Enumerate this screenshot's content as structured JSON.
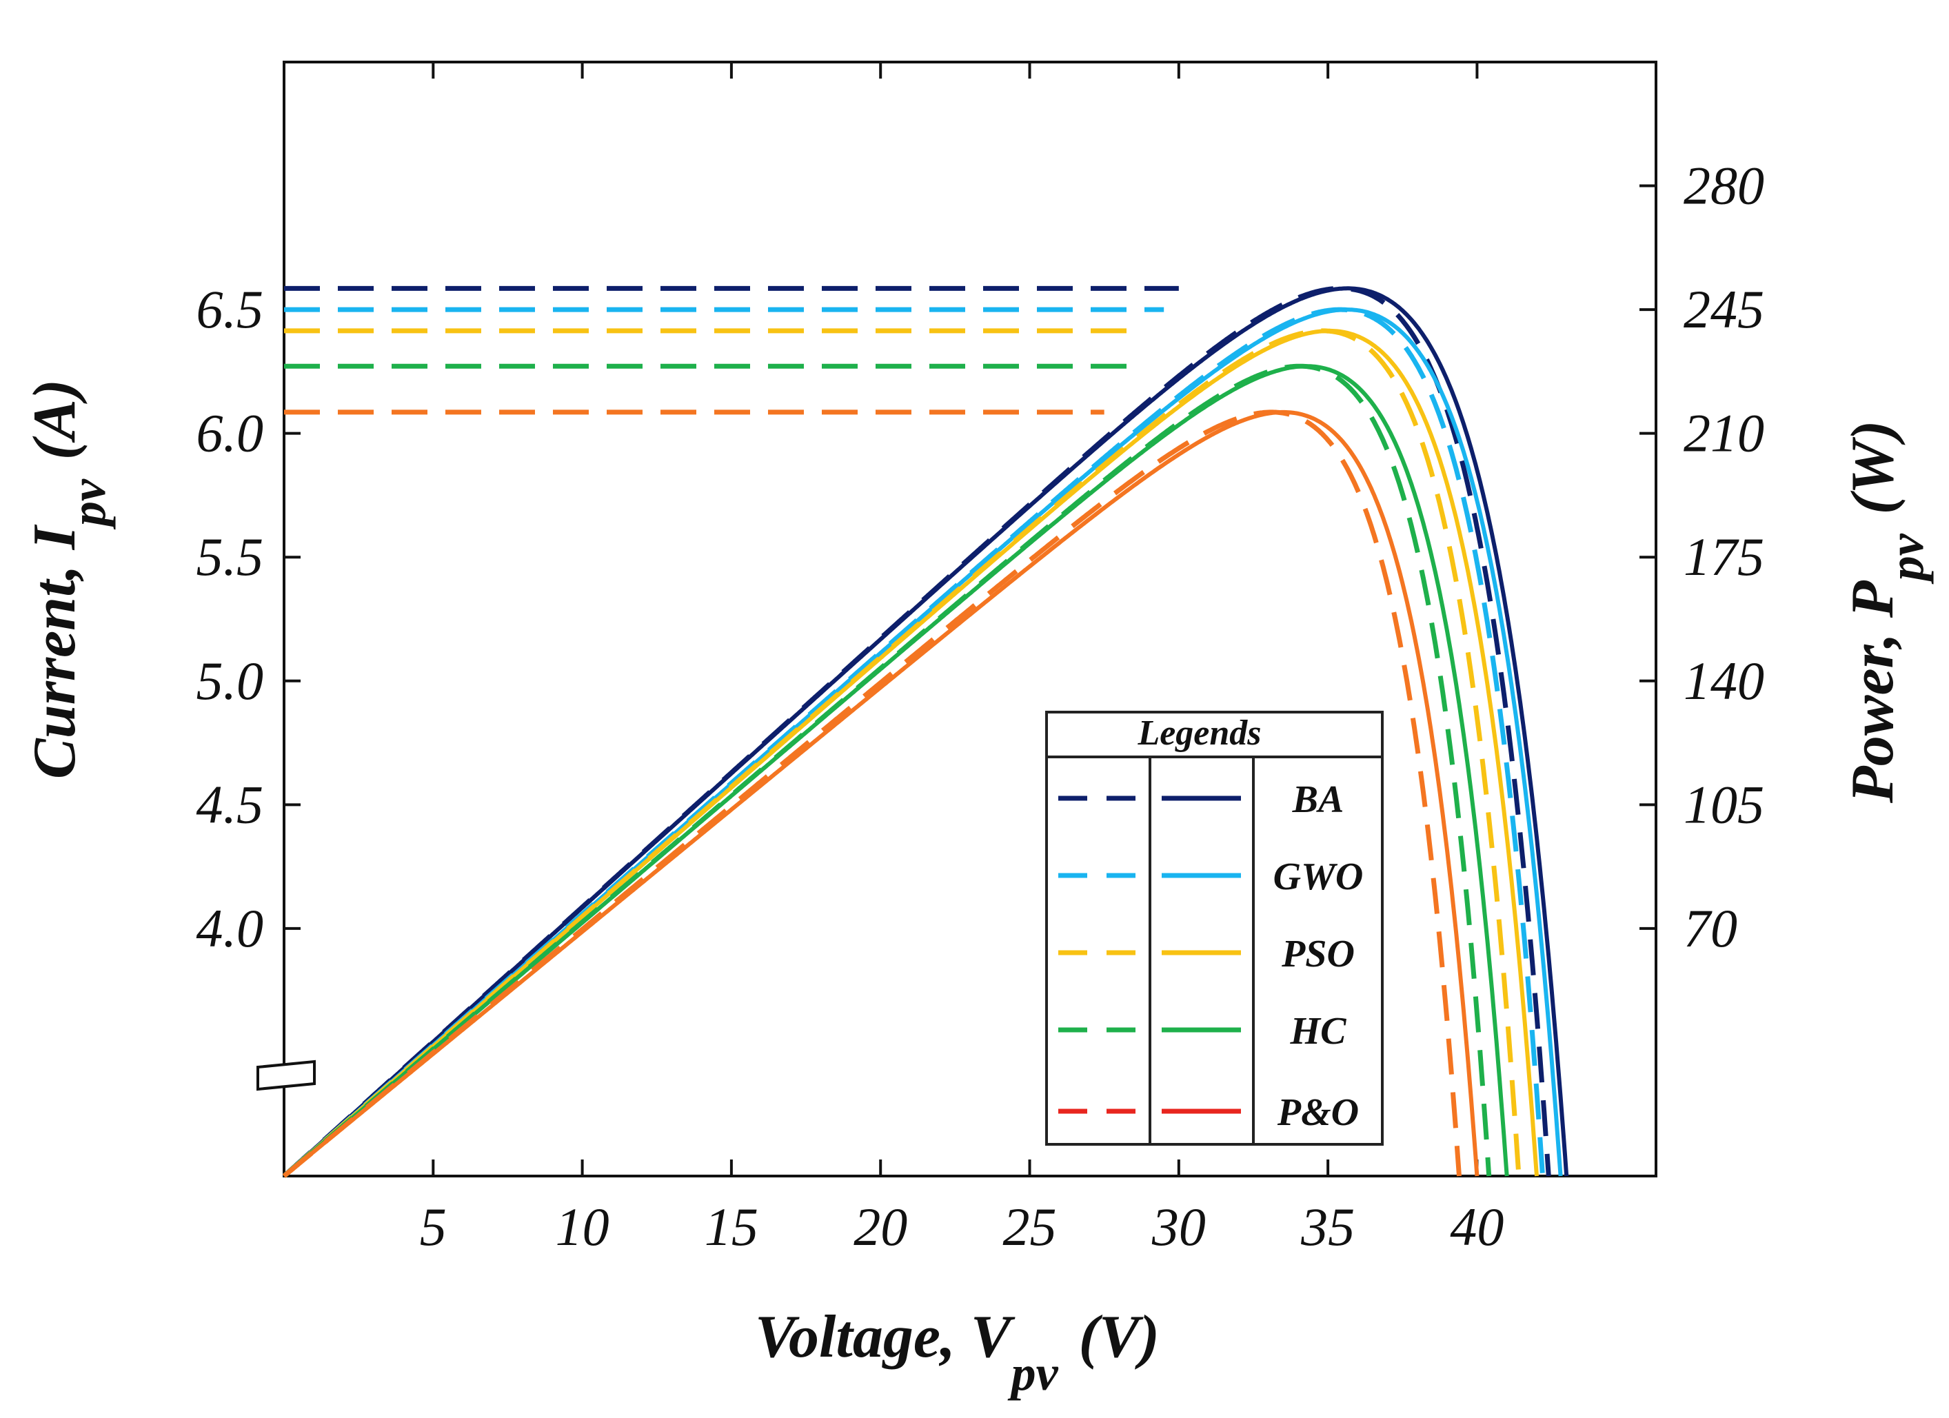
{
  "chart_data": {
    "type": "line",
    "title": "",
    "xlabel": {
      "main": "Voltage, V",
      "sub": "pv",
      "unit": "(V)"
    },
    "ylabel_left": {
      "main": "Current, I",
      "sub": "pv",
      "unit": "(A)"
    },
    "ylabel_right": {
      "main": "Power, P",
      "sub": "pv",
      "unit": "(W)"
    },
    "xlim": [
      0,
      46
    ],
    "ylim_power": [
      0,
      315
    ],
    "x_ticks": [
      5,
      10,
      15,
      20,
      25,
      30,
      35,
      40
    ],
    "x_tick_labels": [
      "5",
      "10",
      "15",
      "20",
      "25",
      "30",
      "35",
      "40"
    ],
    "left_ticks": [
      {
        "label": "4.0",
        "power": 70
      },
      {
        "label": "4.5",
        "power": 105
      },
      {
        "label": "5.0",
        "power": 140
      },
      {
        "label": "5.5",
        "power": 175
      },
      {
        "label": "6.0",
        "power": 210
      },
      {
        "label": "6.5",
        "power": 245
      }
    ],
    "right_ticks": [
      70,
      105,
      140,
      175,
      210,
      245,
      280
    ],
    "right_tick_labels": [
      "70",
      "105",
      "140",
      "175",
      "210",
      "245",
      "280"
    ],
    "series": [
      {
        "name": "BA",
        "color": "#0d1f6b",
        "pmax": 251,
        "vmp": 34.5,
        "voc": 43.0,
        "vc_dashed": 2.6,
        "vc_solid": 2.8,
        "dashed_level": 251
      },
      {
        "name": "GWO",
        "color": "#19b4f0",
        "pmax": 245,
        "vmp": 34.0,
        "voc": 42.8,
        "vc_dashed": 2.5,
        "vc_solid": 2.7,
        "dashed_level": 245
      },
      {
        "name": "PSO",
        "color": "#f8c213",
        "pmax": 239,
        "vmp": 33.3,
        "voc": 42.0,
        "vc_dashed": 2.4,
        "vc_solid": 2.6,
        "dashed_level": 239
      },
      {
        "name": "HC",
        "color": "#1eb04b",
        "pmax": 229,
        "vmp": 32.8,
        "voc": 41.0,
        "vc_dashed": 2.3,
        "vc_solid": 2.5,
        "dashed_level": 229
      },
      {
        "name": "P&O",
        "color": "#f47521",
        "pmax": 216,
        "vmp": 32.0,
        "voc": 40.0,
        "vc_dashed": 2.3,
        "vc_solid": 2.4,
        "dashed_level": 216,
        "legend_color": "#e8261f"
      }
    ],
    "legend": {
      "title": "Legends",
      "entries": [
        "BA",
        "GWO",
        "PSO",
        "HC",
        "P&O"
      ],
      "position": "bottom-right"
    },
    "grid": false
  }
}
